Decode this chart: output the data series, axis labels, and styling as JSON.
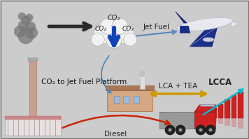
{
  "bg_color": "#cccccc",
  "elements": {
    "co2_text": "CO₂",
    "jet_fuel_text": "Jet Fuel",
    "lca_tea_text": "LCA + TEA",
    "lcca_text": "LCCA",
    "diesel_text": "Diesel",
    "platform_text": "CO₂ to Jet Fuel Platform"
  },
  "arrow_colors": {
    "main_arrow": "#2a2a2a",
    "co2_down_arrow": "#1144bb",
    "jet_fuel_arrow": "#5588bb",
    "lca_arrow": "#cc9900",
    "diesel_arrow": "#cc2200"
  },
  "bar_colors": [
    "#cc2222",
    "#cc2222",
    "#cc2222",
    "#cc2222",
    "#cc2222",
    "#cc2222"
  ],
  "trend_line_color": "#00bbcc",
  "cloud_color": "#f2f2f2",
  "cloud_edge_color": "#bbbbbb"
}
